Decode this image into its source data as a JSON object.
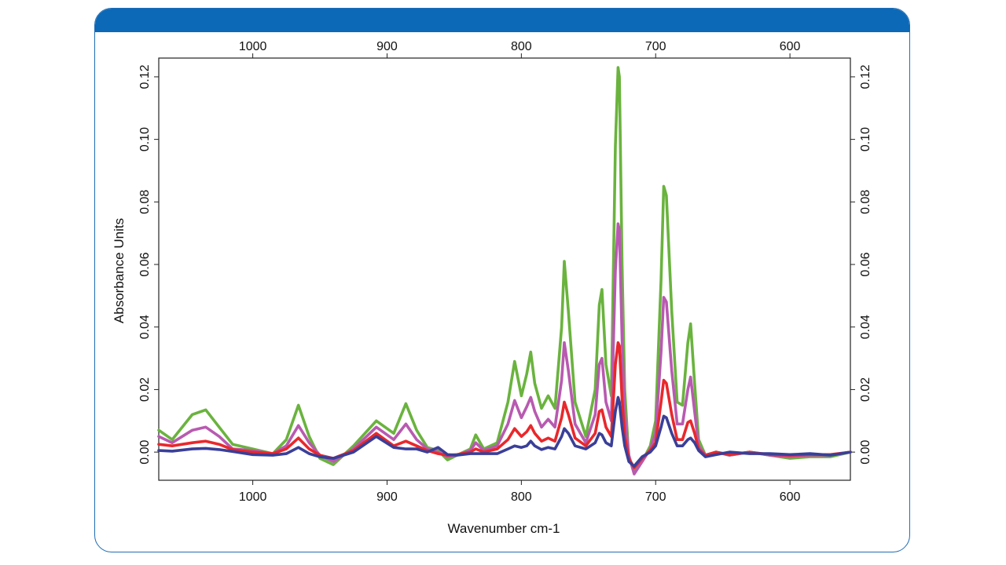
{
  "colors": {
    "header_bar": "#0b69b7",
    "card_border": "#1f6db5"
  },
  "chart_data": {
    "type": "line",
    "title": "",
    "xlabel": "Wavenumber cm-1",
    "ylabel": "Absorbance Units",
    "xlim": [
      1070,
      555
    ],
    "x_reversed": true,
    "ylim": [
      -0.009,
      0.126
    ],
    "x_ticks": [
      1000,
      900,
      800,
      700,
      600
    ],
    "x_tick_labels": [
      "1000",
      "900",
      "800",
      "700",
      "600"
    ],
    "y_ticks": [
      0,
      0.02,
      0.04,
      0.06,
      0.08,
      0.1,
      0.12
    ],
    "y_tick_labels": [
      "0.00",
      "0.02",
      "0.04",
      "0.06",
      "0.08",
      "0.10",
      "0.12"
    ],
    "grid": false,
    "legend": "none",
    "series": [
      {
        "color": "#6ab33e",
        "x": [
          1070,
          1060,
          1045,
          1035,
          1025,
          1015,
          1000,
          985,
          975,
          966,
          958,
          950,
          940,
          925,
          908,
          895,
          886,
          878,
          870,
          862,
          855,
          848,
          838,
          834,
          828,
          818,
          810,
          805,
          800,
          796,
          793,
          790,
          785,
          780,
          775,
          770,
          768,
          765,
          760,
          752,
          745,
          742,
          740,
          737,
          733,
          730,
          728,
          727,
          725,
          723,
          720,
          716,
          710,
          704,
          700,
          696,
          694,
          692,
          688,
          684,
          680,
          676,
          674,
          671,
          668,
          663,
          655,
          645,
          630,
          615,
          600,
          585,
          570,
          555
        ],
        "y": [
          0.007,
          0.004,
          0.012,
          0.0135,
          0.008,
          0.0025,
          0.001,
          -0.0005,
          0.004,
          0.015,
          0.005,
          -0.002,
          -0.004,
          0.002,
          0.01,
          0.006,
          0.0155,
          0.007,
          0.0015,
          0.0005,
          -0.0025,
          -0.001,
          0.001,
          0.0055,
          0.001,
          0.003,
          0.016,
          0.029,
          0.018,
          0.025,
          0.032,
          0.022,
          0.014,
          0.018,
          0.014,
          0.04,
          0.061,
          0.045,
          0.016,
          0.005,
          0.02,
          0.047,
          0.052,
          0.028,
          0.018,
          0.098,
          0.123,
          0.12,
          0.06,
          0.02,
          -0.002,
          -0.006,
          -0.003,
          0.002,
          0.01,
          0.055,
          0.085,
          0.082,
          0.045,
          0.016,
          0.015,
          0.035,
          0.041,
          0.022,
          0.004,
          -0.001,
          0.0,
          -0.001,
          0.0,
          -0.001,
          -0.002,
          -0.0015,
          -0.0015,
          0.0
        ]
      },
      {
        "color": "#b85ab0",
        "x": [
          1070,
          1060,
          1045,
          1035,
          1025,
          1015,
          1000,
          985,
          975,
          966,
          958,
          950,
          940,
          925,
          908,
          895,
          886,
          878,
          870,
          862,
          855,
          848,
          838,
          834,
          828,
          818,
          810,
          805,
          800,
          796,
          793,
          790,
          785,
          780,
          775,
          770,
          768,
          765,
          760,
          752,
          745,
          742,
          740,
          737,
          733,
          730,
          728,
          727,
          725,
          723,
          720,
          716,
          710,
          704,
          700,
          696,
          694,
          692,
          688,
          684,
          680,
          676,
          674,
          671,
          668,
          663,
          655,
          645,
          630,
          615,
          600,
          585,
          570,
          555
        ],
        "y": [
          0.005,
          0.003,
          0.007,
          0.008,
          0.005,
          0.001,
          0.0005,
          -0.0005,
          0.002,
          0.0085,
          0.003,
          -0.001,
          -0.003,
          0.001,
          0.008,
          0.004,
          0.009,
          0.004,
          0.001,
          0.0,
          -0.0015,
          -0.001,
          0.0005,
          0.003,
          0.0005,
          0.002,
          0.009,
          0.0165,
          0.011,
          0.0145,
          0.0175,
          0.013,
          0.008,
          0.0105,
          0.008,
          0.023,
          0.035,
          0.026,
          0.009,
          0.003,
          0.012,
          0.028,
          0.03,
          0.016,
          0.01,
          0.058,
          0.073,
          0.071,
          0.036,
          0.012,
          -0.001,
          -0.007,
          -0.003,
          0.001,
          0.006,
          0.032,
          0.0495,
          0.048,
          0.026,
          0.009,
          0.009,
          0.02,
          0.024,
          0.013,
          0.002,
          -0.001,
          0.0,
          -0.001,
          0.0,
          -0.001,
          -0.0015,
          -0.001,
          -0.001,
          0.0
        ]
      },
      {
        "color": "#e8282c",
        "x": [
          1070,
          1060,
          1045,
          1035,
          1025,
          1015,
          1000,
          985,
          975,
          966,
          958,
          950,
          940,
          925,
          908,
          895,
          886,
          878,
          870,
          862,
          855,
          848,
          838,
          834,
          828,
          818,
          810,
          805,
          800,
          796,
          793,
          790,
          785,
          780,
          775,
          770,
          768,
          765,
          760,
          752,
          745,
          742,
          740,
          737,
          733,
          730,
          728,
          727,
          725,
          723,
          720,
          716,
          710,
          704,
          700,
          696,
          694,
          692,
          688,
          684,
          680,
          676,
          674,
          671,
          668,
          663,
          655,
          645,
          630,
          615,
          600,
          585,
          570,
          555
        ],
        "y": [
          0.0025,
          0.002,
          0.003,
          0.0035,
          0.0025,
          0.0008,
          0.0,
          -0.0005,
          0.001,
          0.0045,
          0.001,
          -0.001,
          -0.002,
          0.0005,
          0.006,
          0.002,
          0.0035,
          0.002,
          0.0005,
          -0.0005,
          -0.001,
          -0.0008,
          0.0,
          0.001,
          0.0,
          0.001,
          0.004,
          0.0075,
          0.005,
          0.0065,
          0.0085,
          0.006,
          0.0035,
          0.0045,
          0.0035,
          0.011,
          0.016,
          0.012,
          0.0045,
          0.002,
          0.006,
          0.013,
          0.0135,
          0.008,
          0.005,
          0.028,
          0.035,
          0.034,
          0.017,
          0.005,
          -0.002,
          -0.005,
          -0.002,
          0.0005,
          0.003,
          0.016,
          0.023,
          0.022,
          0.012,
          0.004,
          0.004,
          0.0095,
          0.01,
          0.006,
          0.001,
          -0.001,
          0.0,
          -0.0008,
          0.0,
          -0.0008,
          -0.001,
          -0.0008,
          -0.0008,
          0.0
        ]
      },
      {
        "color": "#3a3f98",
        "x": [
          1070,
          1060,
          1045,
          1035,
          1025,
          1015,
          1000,
          985,
          975,
          966,
          958,
          950,
          940,
          925,
          908,
          895,
          886,
          878,
          870,
          862,
          855,
          848,
          838,
          834,
          828,
          818,
          810,
          805,
          800,
          796,
          793,
          790,
          785,
          780,
          775,
          770,
          768,
          765,
          760,
          752,
          745,
          742,
          740,
          737,
          733,
          730,
          728,
          727,
          725,
          723,
          720,
          716,
          710,
          704,
          700,
          696,
          694,
          692,
          688,
          684,
          680,
          676,
          674,
          671,
          668,
          663,
          655,
          645,
          630,
          615,
          600,
          585,
          570,
          555
        ],
        "y": [
          0.0005,
          0.0003,
          0.001,
          0.0012,
          0.0008,
          0.0002,
          -0.0008,
          -0.001,
          -0.0005,
          0.0015,
          -0.0005,
          -0.0015,
          -0.002,
          0.0,
          0.005,
          0.0015,
          0.001,
          0.001,
          0.0,
          0.0015,
          -0.0008,
          -0.001,
          -0.0005,
          -0.0005,
          -0.0005,
          -0.0005,
          0.001,
          0.002,
          0.0015,
          0.002,
          0.0035,
          0.002,
          0.0008,
          0.0015,
          0.001,
          0.005,
          0.0075,
          0.006,
          0.002,
          0.001,
          0.003,
          0.006,
          0.0055,
          0.003,
          0.002,
          0.013,
          0.0175,
          0.016,
          0.008,
          0.002,
          -0.003,
          -0.0045,
          -0.0015,
          0.0,
          0.002,
          0.008,
          0.0115,
          0.011,
          0.006,
          0.002,
          0.002,
          0.004,
          0.0045,
          0.003,
          0.0005,
          -0.0015,
          -0.0008,
          0.0,
          -0.0005,
          -0.0005,
          -0.0008,
          -0.0005,
          -0.001,
          0.0
        ]
      }
    ]
  }
}
